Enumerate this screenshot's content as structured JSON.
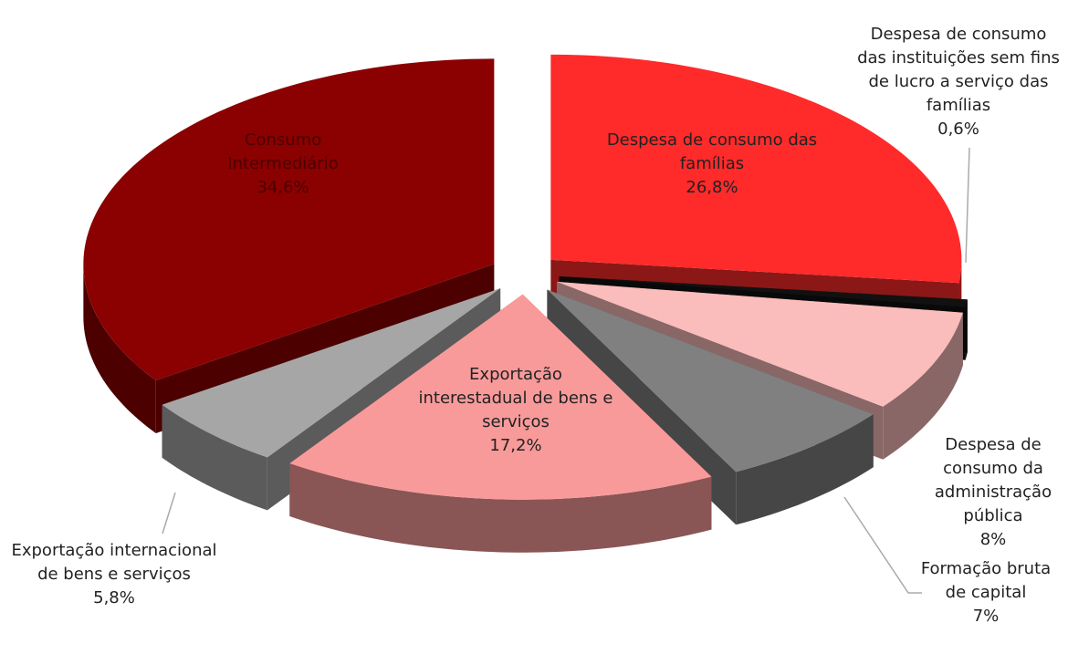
{
  "chart_data": {
    "type": "pie",
    "categories": [
      "Despesa de consumo das famílias",
      "Despesa de consumo das instituições sem fins de lucro a serviço das famílias",
      "Despesa de consumo da administração pública",
      "Formação bruta de capital",
      "Exportação interestadual de bens e serviços",
      "Exportação internacional de bens e serviços",
      "Consumo Intermediário"
    ],
    "values": [
      26.8,
      0.6,
      8,
      7,
      17.2,
      5.8,
      34.6
    ],
    "value_labels": [
      "26,8%",
      "0,6%",
      "8%",
      "7%",
      "17,2%",
      "5,8%",
      "34,6%"
    ],
    "colors": [
      "#ff2a2a",
      "#111111",
      "#fbbcbc",
      "#808080",
      "#f99a9a",
      "#a6a6a6",
      "#8b0000"
    ]
  }
}
